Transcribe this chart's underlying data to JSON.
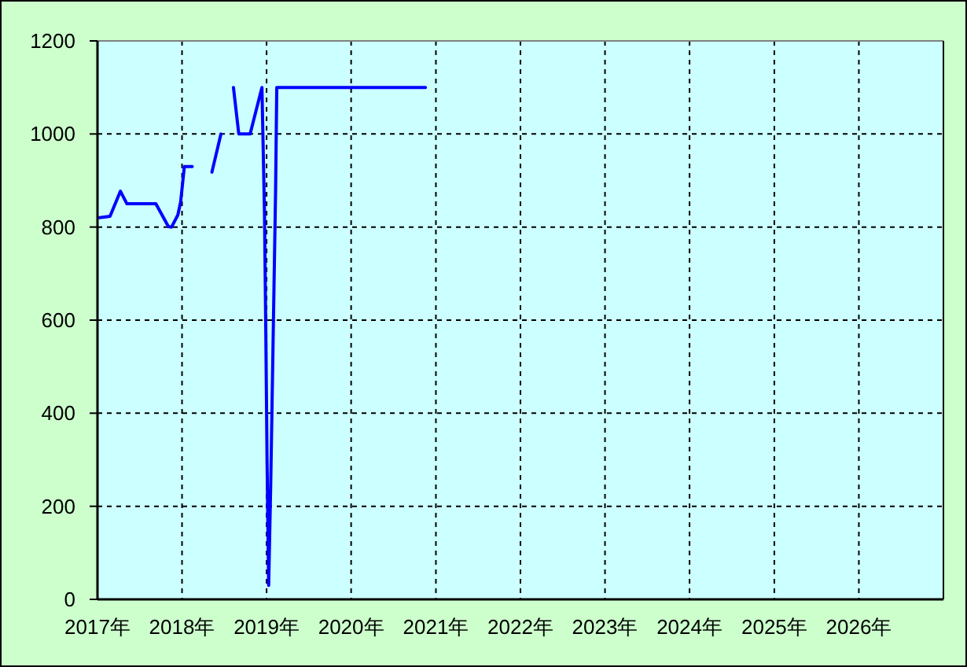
{
  "chart_data": {
    "type": "line",
    "x": [
      "2017-01-10",
      "2017-02-24",
      "2017-04-10",
      "2017-05-08",
      "2017-09-10",
      "2017-11-03",
      "2017-11-17",
      "2017-12-14",
      "2017-12-26",
      "2018-01-11",
      "2018-02-14",
      "2018-03-30",
      "2018-05-10",
      "2018-06-18",
      "2018-07-15",
      "2018-08-11",
      "2018-09-03",
      "2018-10-22",
      "2018-12-12",
      "2018-12-23",
      "2018-12-29",
      "2019-01-03",
      "2019-01-10",
      "2019-01-19",
      "2019-01-26",
      "2019-02-02",
      "2019-02-09",
      "2019-02-14",
      "2020-11-17"
    ],
    "series": [
      {
        "color": "#0000ff",
        "values": [
          820,
          823,
          877,
          850,
          850,
          801,
          800,
          826,
          854,
          930,
          930,
          null,
          918,
          1000,
          null,
          1100,
          1000,
          1000,
          1100,
          830,
          560,
          300,
          30,
          250,
          460,
          670,
          880,
          1100,
          1100
        ]
      }
    ],
    "xlim": [
      "2017",
      "2027"
    ],
    "xticks": [
      {
        "value": "2017",
        "label": "2017年"
      },
      {
        "value": "2018",
        "label": "2018年"
      },
      {
        "value": "2019",
        "label": "2019年"
      },
      {
        "value": "2020",
        "label": "2020年"
      },
      {
        "value": "2021",
        "label": "2021年"
      },
      {
        "value": "2022",
        "label": "2022年"
      },
      {
        "value": "2023",
        "label": "2023年"
      },
      {
        "value": "2024",
        "label": "2024年"
      },
      {
        "value": "2025",
        "label": "2025年"
      },
      {
        "value": "2026",
        "label": "2026年"
      }
    ],
    "ylim": [
      0,
      1200
    ],
    "yticks": [
      0,
      200,
      400,
      600,
      800,
      1000,
      1200
    ],
    "grid": true,
    "marker": "none",
    "line_style": "solid"
  }
}
